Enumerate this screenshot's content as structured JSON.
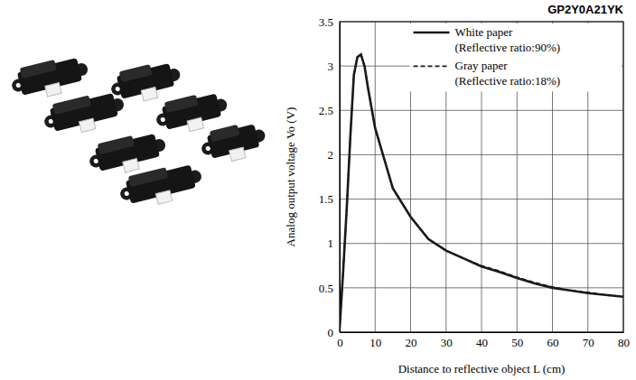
{
  "chart_data": {
    "type": "line",
    "title": "GP2Y0A21YK",
    "x_label": "Distance to reflective object L (cm)",
    "y_label": "Analog output voltage Vo (V)",
    "x": [
      0,
      1,
      2,
      3,
      4,
      5,
      6,
      7,
      8,
      10,
      15,
      20,
      25,
      30,
      35,
      40,
      45,
      50,
      55,
      60,
      65,
      70,
      75,
      80
    ],
    "series": [
      {
        "name": "White paper (Reflective ratio:90%)",
        "color": "#1a1a1a",
        "line_style": "solid",
        "values": [
          0.05,
          0.7,
          1.4,
          2.2,
          2.9,
          3.1,
          3.13,
          3.0,
          2.75,
          2.3,
          1.62,
          1.3,
          1.05,
          0.92,
          0.83,
          0.74,
          0.68,
          0.61,
          0.55,
          0.5,
          0.47,
          0.44,
          0.42,
          0.4
        ]
      },
      {
        "name": "Gray paper (Reflective ratio:18%)",
        "color": "#1a1a1a",
        "line_style": "dashed",
        "values": [
          0.05,
          0.7,
          1.4,
          2.2,
          2.9,
          3.1,
          3.13,
          3.0,
          2.75,
          2.3,
          1.62,
          1.3,
          1.05,
          0.92,
          0.83,
          0.75,
          0.69,
          0.62,
          0.56,
          0.51,
          0.47,
          0.45,
          0.42,
          0.4
        ]
      }
    ],
    "xlim": [
      0,
      80
    ],
    "xticks": [
      0,
      10,
      20,
      30,
      40,
      50,
      60,
      70,
      80
    ],
    "ylim": [
      0,
      3.5
    ],
    "yticks": [
      0,
      0.5,
      1,
      1.5,
      2,
      2.5,
      3,
      3.5
    ],
    "grid": true,
    "legend": "top-right"
  }
}
